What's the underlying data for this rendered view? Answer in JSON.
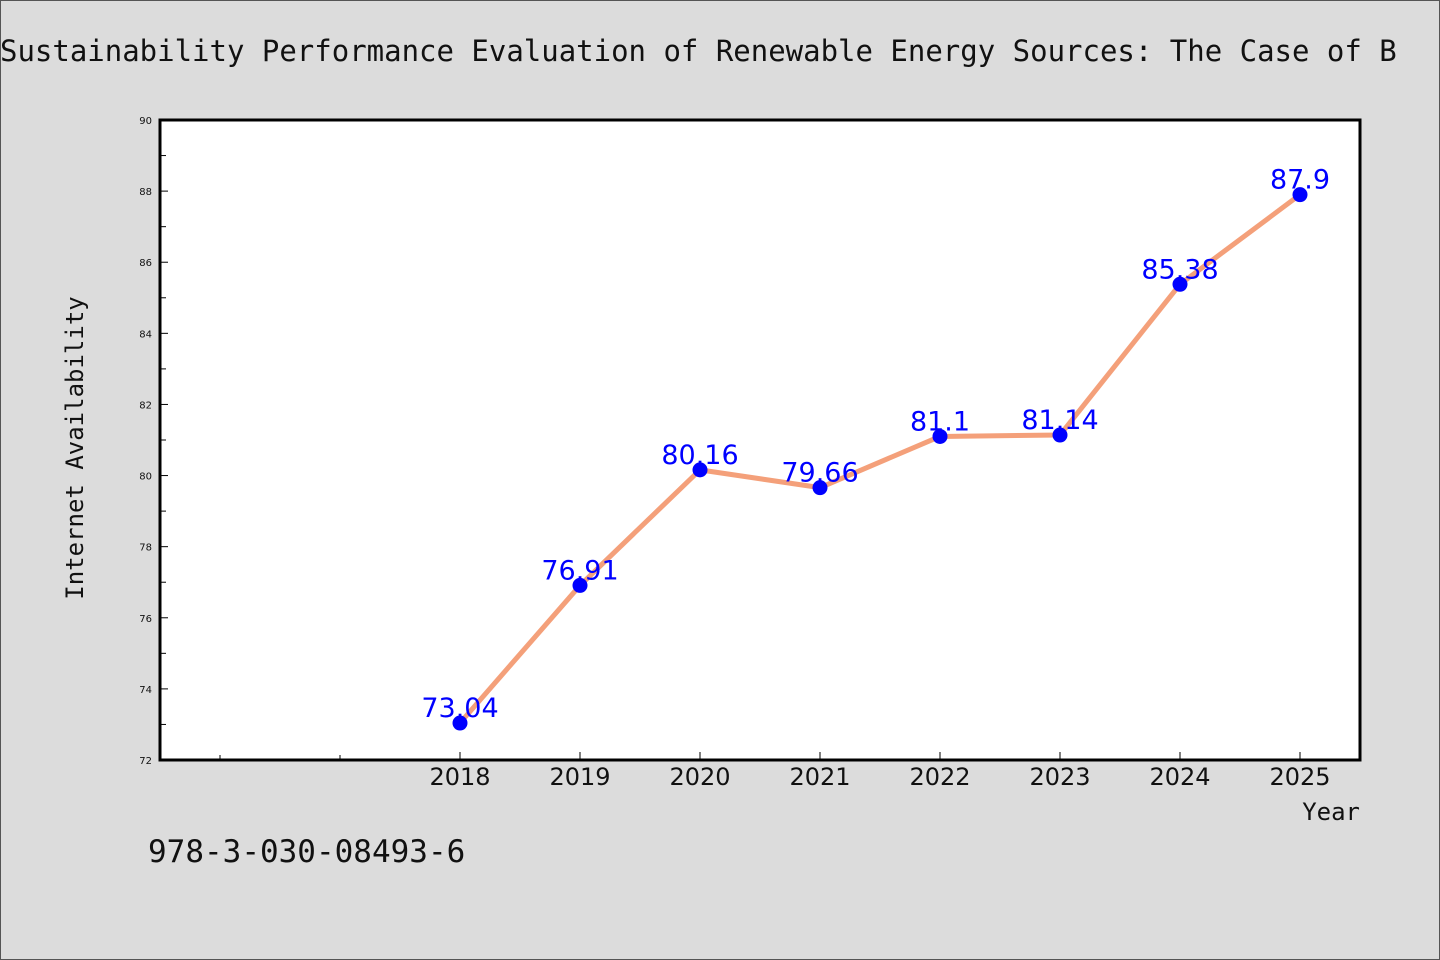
{
  "title": "Sustainability Performance Evaluation of Renewable Energy Sources: The Case of B",
  "footer_code": "978-3-030-08493-6",
  "colors": {
    "background": "#dcdcdc",
    "plot_background": "#ffffff",
    "line": "#f4a07a",
    "marker": "#0000ff",
    "data_label": "#0000ff"
  },
  "chart_data": {
    "type": "line",
    "title": "Sustainability Performance Evaluation of Renewable Energy Sources: The Case of B",
    "xlabel": "Year",
    "ylabel": "Internet Availability",
    "categories": [
      "2018",
      "2019",
      "2020",
      "2021",
      "2022",
      "2023",
      "2024",
      "2025"
    ],
    "series": [
      {
        "values": [
          73.04,
          76.91,
          80.16,
          79.66,
          81.1,
          81.14,
          85.38,
          87.9
        ],
        "labels": [
          "73.04",
          "76.91",
          "80.16",
          "79.66",
          "81.1",
          "81.14",
          "85.38",
          "87.9"
        ]
      }
    ],
    "ylim": [
      72,
      90
    ],
    "y_ticks": [
      "72",
      "74",
      "76",
      "78",
      "80",
      "82",
      "84",
      "86",
      "88",
      "90"
    ],
    "grid": false,
    "legend": "none"
  }
}
